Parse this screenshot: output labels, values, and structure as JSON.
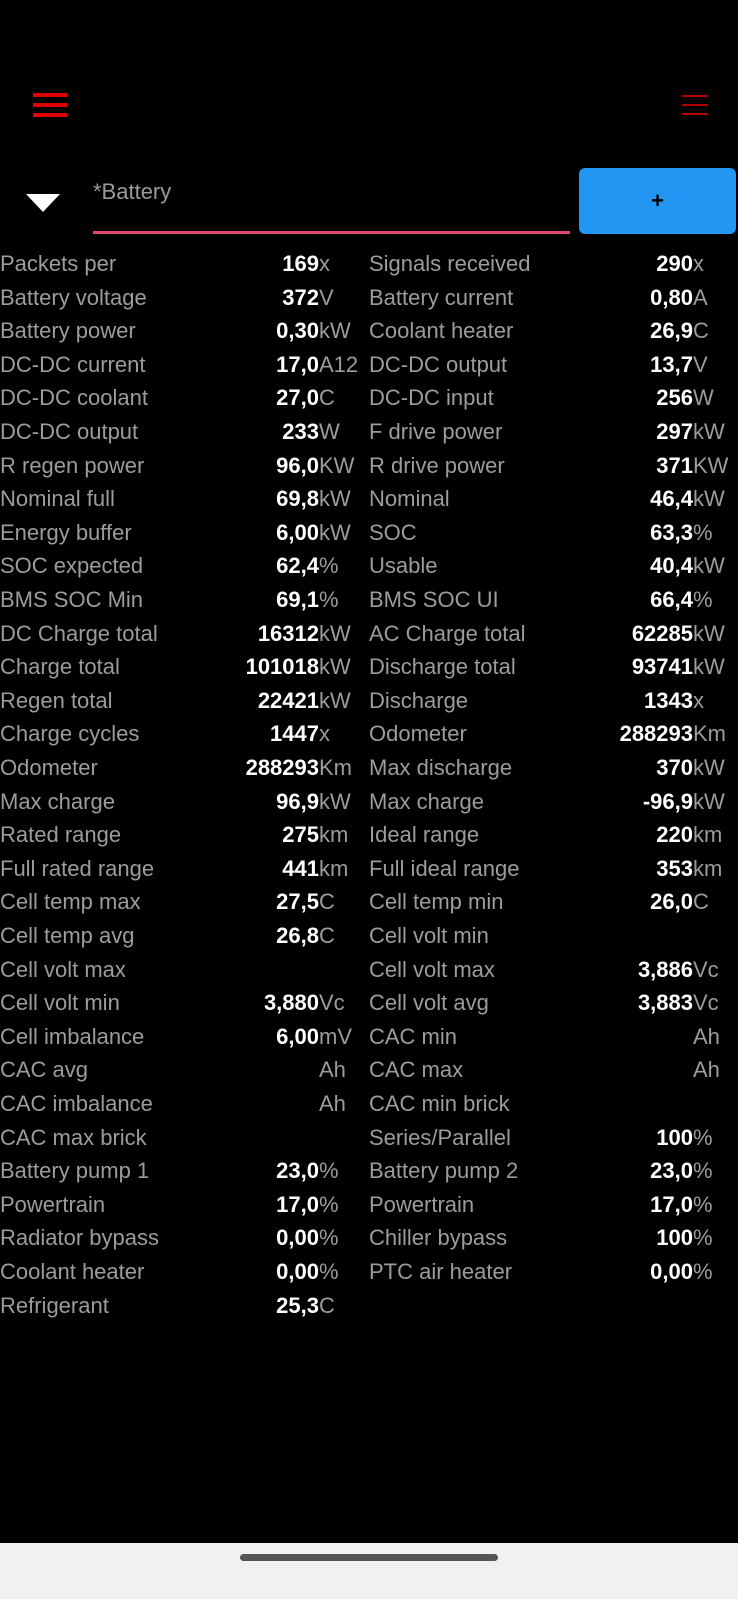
{
  "header": {
    "left_menu_icon": "hamburger-icon",
    "right_menu_icon": "hamburger-icon",
    "accent": "#e00000"
  },
  "selector": {
    "dropdown_icon": "triangle-down-icon",
    "value": "*Battery",
    "underline_color": "#e0456d"
  },
  "add_button": {
    "label": "+",
    "color": "#2196f3"
  },
  "rows": [
    [
      [
        "Packets per",
        "169",
        "x"
      ],
      [
        "Signals received",
        "290",
        "x"
      ]
    ],
    [
      [
        "Battery voltage",
        "372",
        "V"
      ],
      [
        "Battery current",
        "0,80",
        "A"
      ]
    ],
    [
      [
        "Battery power",
        "0,30",
        "kW"
      ],
      [
        "Coolant heater",
        "26,9",
        "C"
      ]
    ],
    [
      [
        "DC-DC current",
        "17,0",
        "A12"
      ],
      [
        "DC-DC output",
        "13,7",
        "V"
      ]
    ],
    [
      [
        "DC-DC coolant",
        "27,0",
        "C"
      ],
      [
        "DC-DC input",
        "256",
        "W"
      ]
    ],
    [
      [
        "DC-DC output",
        "233",
        "W"
      ],
      [
        "F drive power",
        "297",
        "kW"
      ]
    ],
    [
      [
        "R regen power",
        "96,0",
        "KW"
      ],
      [
        "R drive power",
        "371",
        "KW"
      ]
    ],
    [
      [
        "Nominal full",
        "69,8",
        "kW"
      ],
      [
        "Nominal",
        "46,4",
        "kW"
      ]
    ],
    [
      [
        "Energy buffer",
        "6,00",
        "kW"
      ],
      [
        "SOC",
        "63,3",
        "%"
      ]
    ],
    [
      [
        "SOC expected",
        "62,4",
        "%"
      ],
      [
        "Usable",
        "40,4",
        "kW"
      ]
    ],
    [
      [
        "BMS SOC Min",
        "69,1",
        "%"
      ],
      [
        "BMS SOC UI",
        "66,4",
        "%"
      ]
    ],
    [
      [
        "DC Charge total",
        "16312",
        "kW"
      ],
      [
        "AC Charge total",
        "62285",
        "kW"
      ]
    ],
    [
      [
        "Charge total",
        "101018",
        "kW"
      ],
      [
        "Discharge total",
        "93741",
        "kW"
      ]
    ],
    [
      [
        "Regen total",
        "22421",
        "kW"
      ],
      [
        "Discharge",
        "1343",
        "x"
      ]
    ],
    [
      [
        "Charge cycles",
        "1447",
        "x"
      ],
      [
        "Odometer",
        "288293",
        "Km"
      ]
    ],
    [
      [
        "Odometer",
        "288293",
        "Km"
      ],
      [
        "Max discharge",
        "370",
        "kW"
      ]
    ],
    [
      [
        "Max charge",
        "96,9",
        "kW"
      ],
      [
        "Max charge",
        "-96,9",
        "kW"
      ]
    ],
    [
      [
        "Rated range",
        "275",
        "km"
      ],
      [
        "Ideal range",
        "220",
        "km"
      ]
    ],
    [
      [
        "Full rated range",
        "441",
        "km"
      ],
      [
        "Full ideal range",
        "353",
        "km"
      ]
    ],
    [
      [
        "Cell temp max",
        "27,5",
        "C"
      ],
      [
        "Cell temp min",
        "26,0",
        "C"
      ]
    ],
    [
      [
        "Cell temp avg",
        "26,8",
        "C"
      ],
      [
        "Cell volt min",
        "",
        ""
      ]
    ],
    [
      [
        "Cell volt max",
        "",
        ""
      ],
      [
        "Cell volt max",
        "3,886",
        "Vc"
      ]
    ],
    [
      [
        "Cell volt min",
        "3,880",
        "Vc"
      ],
      [
        "Cell volt avg",
        "3,883",
        "Vc"
      ]
    ],
    [
      [
        "Cell imbalance",
        "6,00",
        "mV"
      ],
      [
        "CAC min",
        "",
        "Ah"
      ]
    ],
    [
      [
        "CAC avg",
        "",
        "Ah"
      ],
      [
        "CAC max",
        "",
        "Ah"
      ]
    ],
    [
      [
        "CAC imbalance",
        "",
        "Ah"
      ],
      [
        "CAC min brick",
        "",
        ""
      ]
    ],
    [
      [
        "CAC max brick",
        "",
        ""
      ],
      [
        "Series/Parallel",
        "100",
        "%"
      ]
    ],
    [
      [
        "Battery pump 1",
        "23,0",
        "%"
      ],
      [
        "Battery pump 2",
        "23,0",
        "%"
      ]
    ],
    [
      [
        "Powertrain",
        "17,0",
        "%"
      ],
      [
        "Powertrain",
        "17,0",
        "%"
      ]
    ],
    [
      [
        "Radiator bypass",
        "0,00",
        "%"
      ],
      [
        "Chiller bypass",
        "100",
        "%"
      ]
    ],
    [
      [
        "Coolant heater",
        "0,00",
        "%"
      ],
      [
        "PTC air heater",
        "0,00",
        "%"
      ]
    ],
    [
      [
        "Refrigerant",
        "25,3",
        "C"
      ],
      null
    ]
  ]
}
